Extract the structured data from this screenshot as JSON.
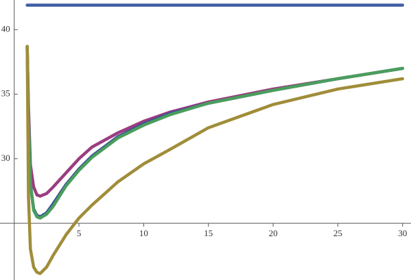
{
  "chart_data": {
    "type": "line",
    "x": [
      1,
      1.1,
      1.25,
      1.5,
      1.75,
      2,
      2.5,
      3,
      4,
      5,
      6,
      8,
      10,
      12,
      15,
      20,
      25,
      30
    ],
    "series": [
      {
        "color": "#3f5ea3",
        "values": [
          41.9,
          41.9,
          41.9,
          41.9,
          41.9,
          41.9,
          41.9,
          41.9,
          41.9,
          41.9,
          41.9,
          41.9,
          41.9,
          41.9,
          41.9,
          41.9,
          41.9,
          41.9
        ]
      },
      {
        "color": "#9b3d80",
        "values": [
          38.7,
          34,
          29.5,
          27.8,
          27.2,
          27.1,
          27.3,
          27.8,
          28.9,
          30.0,
          30.9,
          32.0,
          32.9,
          33.6,
          34.4,
          35.4,
          36.2,
          37.0
        ]
      },
      {
        "color": "#3b4f99",
        "values": [
          38.7,
          33,
          28,
          26.1,
          25.6,
          25.5,
          25.8,
          26.5,
          28.0,
          29.2,
          30.2,
          31.7,
          32.7,
          33.5,
          34.3,
          35.3,
          36.2,
          37.0
        ]
      },
      {
        "color": "#4a9e5c",
        "values": [
          38.7,
          33,
          28,
          26.0,
          25.5,
          25.4,
          25.7,
          26.3,
          27.9,
          29.1,
          30.1,
          31.6,
          32.6,
          33.4,
          34.3,
          35.3,
          36.2,
          37.0
        ]
      },
      {
        "color": "#a08d3a",
        "values": [
          38.7,
          27,
          23,
          21.6,
          21.2,
          21.1,
          21.6,
          22.5,
          24.1,
          25.4,
          26.4,
          28.2,
          29.6,
          30.7,
          32.4,
          34.2,
          35.4,
          36.2
        ]
      }
    ],
    "xlim": [
      -1.1,
      30.65
    ],
    "ylim": [
      20.6,
      42.3
    ],
    "xticks": [
      5,
      10,
      15,
      20,
      25,
      30
    ],
    "yticks": [
      30,
      35,
      40
    ],
    "axes_origin": [
      0,
      25
    ],
    "grid": false
  }
}
